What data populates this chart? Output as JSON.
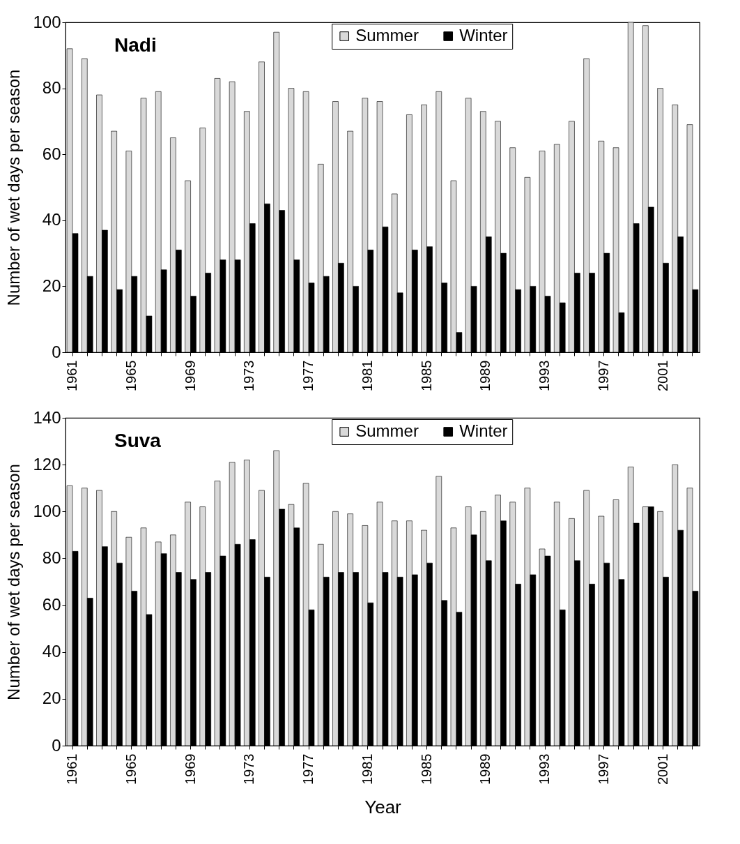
{
  "chart_data": [
    {
      "type": "bar",
      "title": "Nadi",
      "ylabel": "Number of wet days per season",
      "categories": [
        "1961",
        null,
        null,
        null,
        "1965",
        null,
        null,
        null,
        "1969",
        null,
        null,
        null,
        "1973",
        null,
        null,
        null,
        "1977",
        null,
        null,
        null,
        "1981",
        null,
        null,
        null,
        "1985",
        null,
        null,
        null,
        "1989",
        null,
        null,
        null,
        "1993",
        null,
        null,
        null,
        "1997",
        null,
        null,
        null,
        "2001",
        null,
        null
      ],
      "series": [
        {
          "name": "Summer",
          "color": "#d9d9d9",
          "values": [
            92,
            89,
            78,
            67,
            61,
            77,
            79,
            65,
            52,
            68,
            83,
            82,
            73,
            88,
            97,
            80,
            79,
            57,
            76,
            67,
            77,
            76,
            48,
            72,
            75,
            79,
            52,
            77,
            73,
            70,
            62,
            53,
            61,
            63,
            70,
            89,
            64,
            62,
            100,
            99,
            80,
            75,
            69
          ]
        },
        {
          "name": "Winter",
          "color": "#000000",
          "values": [
            36,
            23,
            37,
            19,
            23,
            11,
            25,
            31,
            17,
            24,
            28,
            28,
            39,
            45,
            43,
            28,
            21,
            23,
            27,
            20,
            31,
            38,
            18,
            31,
            32,
            21,
            6,
            20,
            35,
            30,
            19,
            20,
            17,
            15,
            24,
            24,
            30,
            12,
            39,
            44,
            27,
            35,
            19
          ]
        }
      ],
      "ylim": [
        0,
        100
      ],
      "yticks": [
        0,
        20,
        40,
        60,
        80,
        100
      ],
      "legend": "top right",
      "grid": false
    },
    {
      "type": "bar",
      "title": "Suva",
      "xlabel": "Year",
      "ylabel": "Number of wet days per season",
      "categories": [
        "1961",
        null,
        null,
        null,
        "1965",
        null,
        null,
        null,
        "1969",
        null,
        null,
        null,
        "1973",
        null,
        null,
        null,
        "1977",
        null,
        null,
        null,
        "1981",
        null,
        null,
        null,
        "1985",
        null,
        null,
        null,
        "1989",
        null,
        null,
        null,
        "1993",
        null,
        null,
        null,
        "1997",
        null,
        null,
        null,
        "2001",
        null,
        null
      ],
      "series": [
        {
          "name": "Summer",
          "color": "#d9d9d9",
          "values": [
            111,
            110,
            109,
            100,
            89,
            93,
            87,
            90,
            104,
            102,
            113,
            121,
            122,
            109,
            126,
            103,
            112,
            86,
            100,
            99,
            94,
            104,
            96,
            96,
            92,
            115,
            93,
            102,
            100,
            107,
            104,
            110,
            84,
            104,
            97,
            109,
            98,
            105,
            119,
            102,
            100,
            120,
            110
          ]
        },
        {
          "name": "Winter",
          "color": "#000000",
          "values": [
            83,
            63,
            85,
            78,
            66,
            56,
            82,
            74,
            71,
            74,
            81,
            86,
            88,
            72,
            101,
            93,
            58,
            72,
            74,
            74,
            61,
            74,
            72,
            73,
            78,
            62,
            57,
            90,
            79,
            96,
            69,
            73,
            81,
            58,
            79,
            69,
            78,
            71,
            95,
            102,
            72,
            92,
            66
          ]
        }
      ],
      "ylim": [
        0,
        140
      ],
      "yticks": [
        0,
        20,
        40,
        60,
        80,
        100,
        120,
        140
      ],
      "legend": "top right",
      "grid": false
    }
  ]
}
